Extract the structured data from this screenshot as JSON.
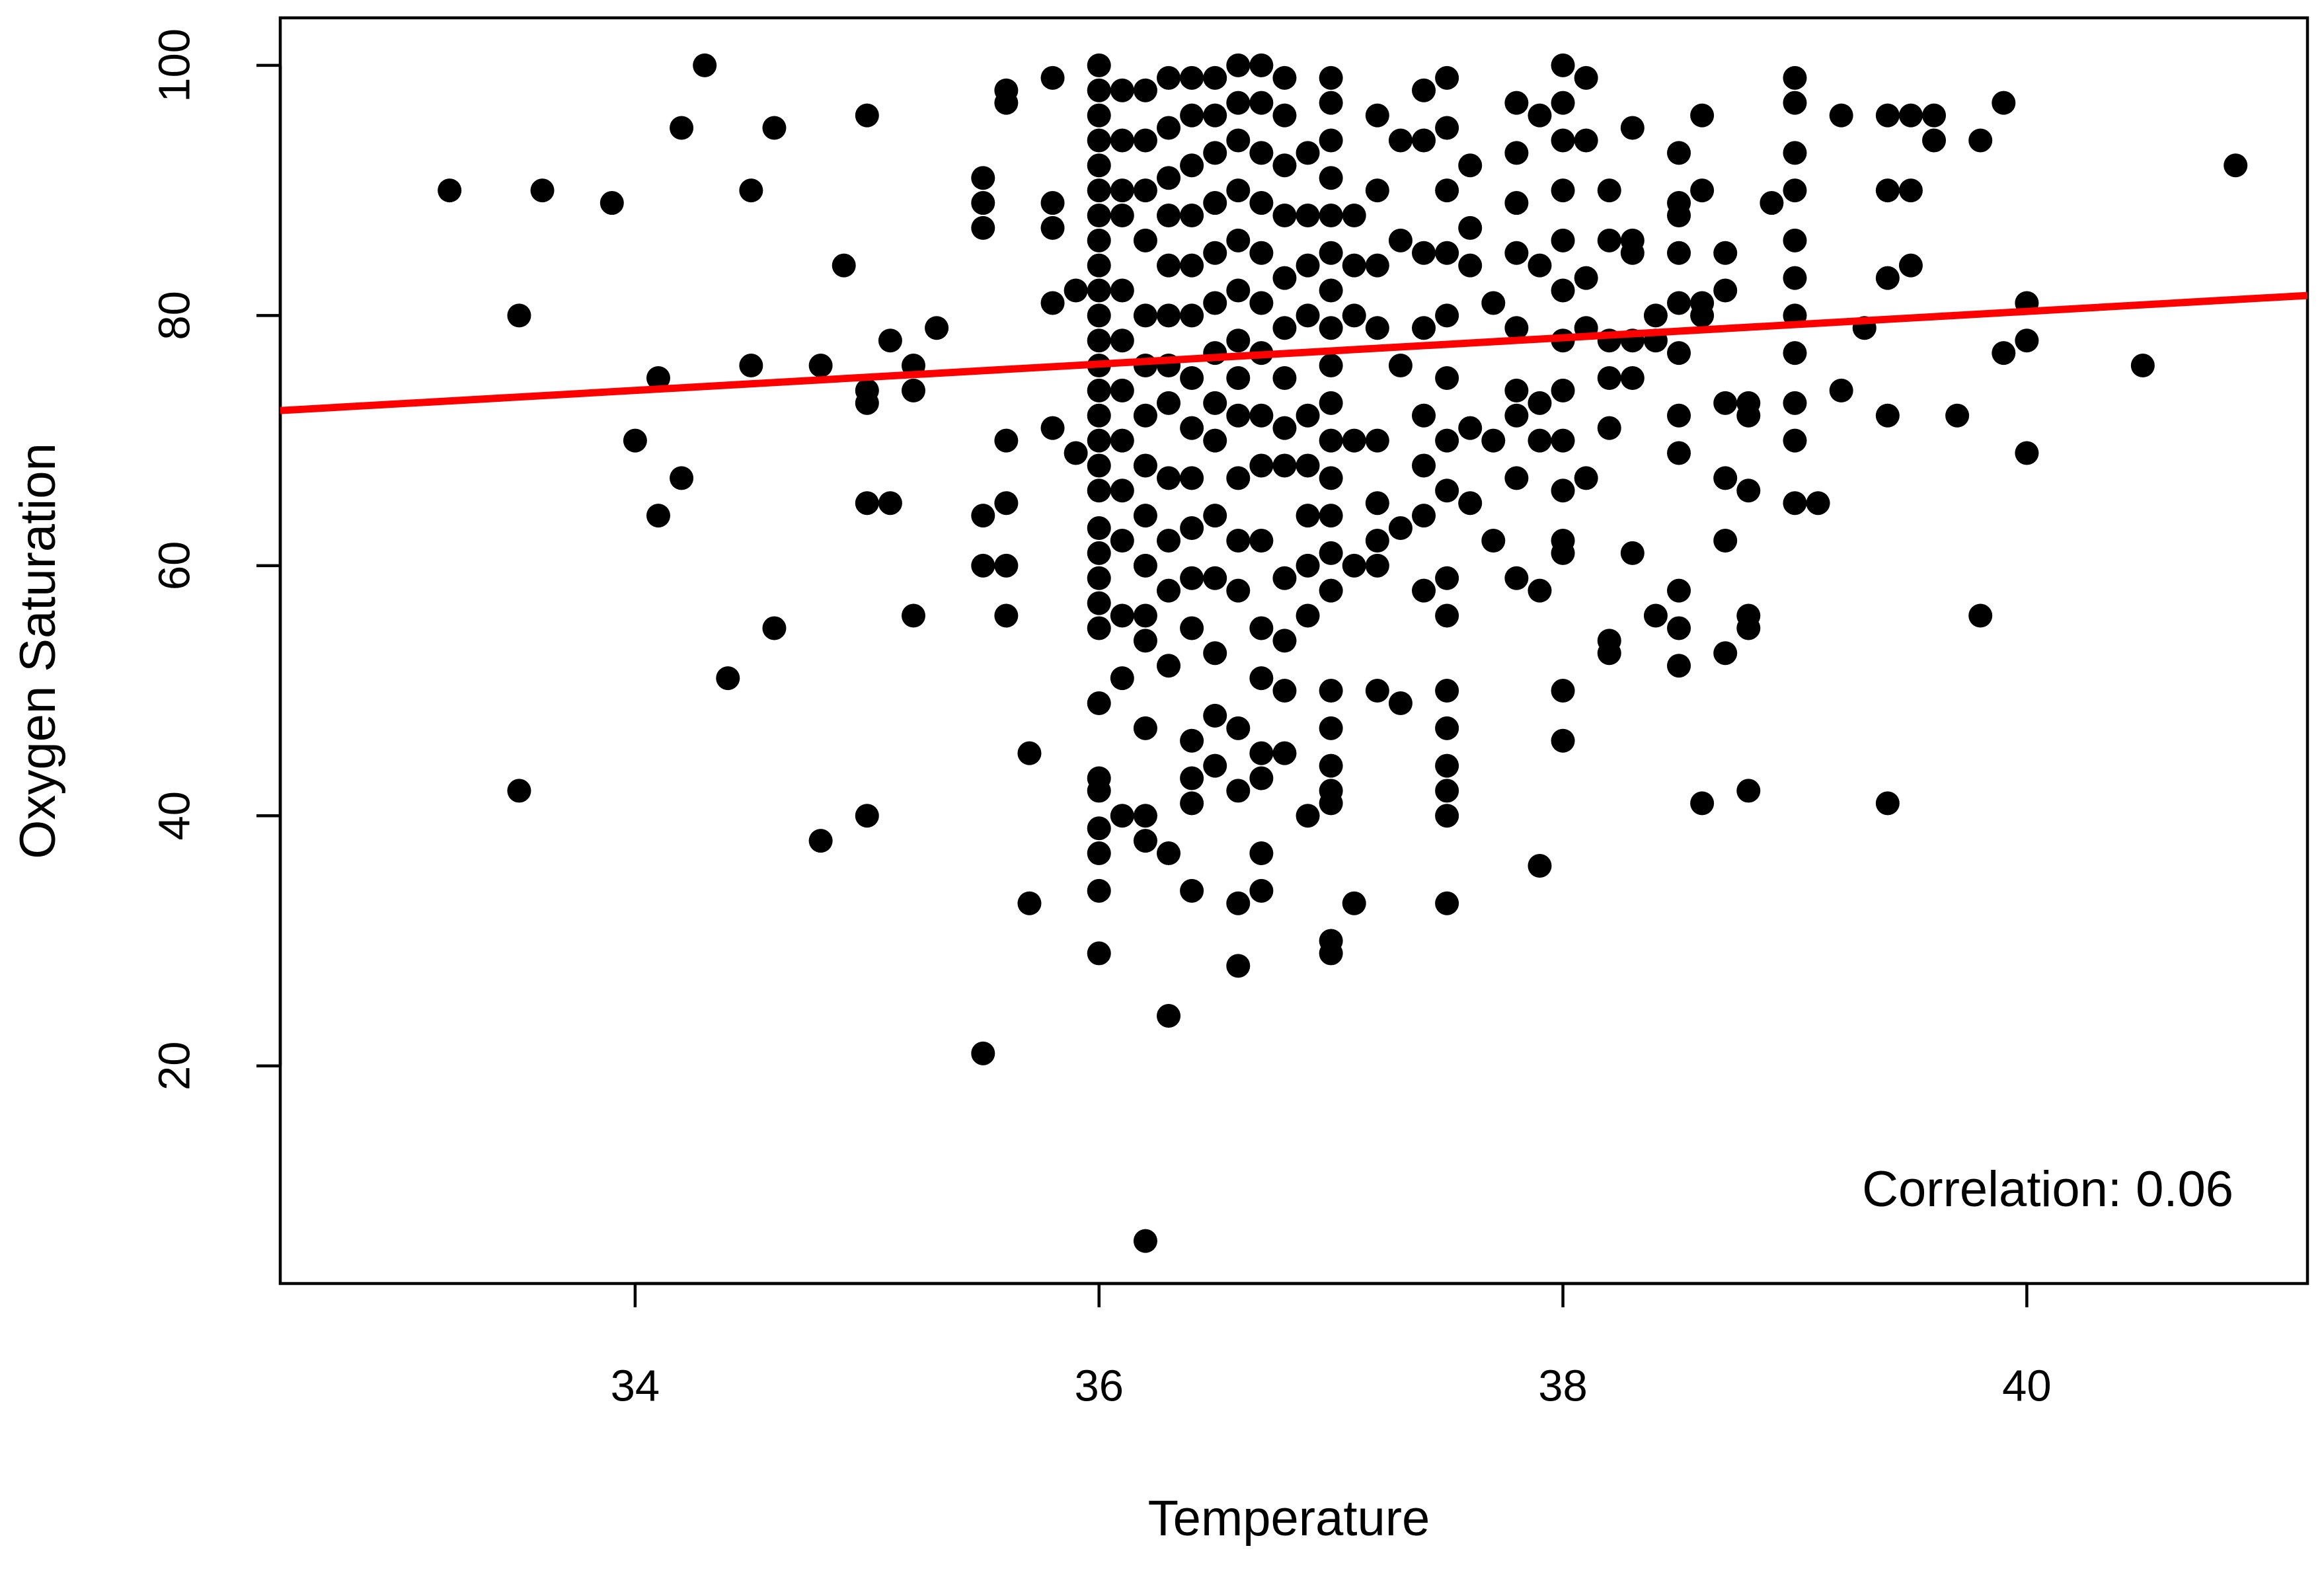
{
  "chart_data": {
    "type": "scatter",
    "xlabel": "Temperature",
    "ylabel": "Oxygen Saturation",
    "annotation": "Correlation: 0.06",
    "color": "#000000",
    "xlim": [
      32.47,
      41.21
    ],
    "ylim": [
      2.6,
      103.8
    ],
    "xticks": [
      34,
      36,
      38,
      40
    ],
    "yticks": [
      20,
      40,
      60,
      80,
      100
    ],
    "grid": false,
    "fit": {
      "x": [
        32.47,
        41.21
      ],
      "y": [
        72.4,
        81.6
      ],
      "color": "#ff0000"
    },
    "x": [
      33.2,
      33.5,
      33.5,
      33.6,
      33.9,
      34.0,
      34.1,
      34.1,
      34.2,
      34.2,
      34.3,
      34.4,
      34.5,
      34.5,
      34.6,
      34.6,
      34.8,
      34.8,
      34.9,
      35.0,
      35.0,
      35.0,
      35.0,
      35.0,
      35.1,
      35.1,
      35.2,
      35.2,
      35.2,
      35.3,
      35.5,
      35.5,
      35.5,
      35.5,
      35.5,
      35.5,
      35.6,
      35.6,
      35.6,
      35.6,
      35.6,
      35.6,
      35.7,
      35.7,
      35.8,
      35.8,
      35.8,
      35.8,
      35.8,
      35.9,
      35.9,
      36.0,
      36.0,
      36.0,
      36.0,
      36.0,
      36.0,
      36.0,
      36.0,
      36.0,
      36.0,
      36.0,
      36.0,
      36.0,
      36.0,
      36.0,
      36.0,
      36.0,
      36.0,
      36.0,
      36.0,
      36.0,
      36.0,
      36.0,
      36.0,
      36.0,
      36.0,
      36.0,
      36.0,
      36.0,
      36.0,
      36.1,
      36.1,
      36.1,
      36.1,
      36.1,
      36.1,
      36.1,
      36.1,
      36.1,
      36.1,
      36.1,
      36.1,
      36.1,
      36.2,
      36.2,
      36.2,
      36.2,
      36.2,
      36.2,
      36.2,
      36.2,
      36.2,
      36.2,
      36.2,
      36.2,
      36.2,
      36.2,
      36.2,
      36.2,
      36.3,
      36.3,
      36.3,
      36.3,
      36.3,
      36.3,
      36.3,
      36.3,
      36.3,
      36.3,
      36.3,
      36.3,
      36.3,
      36.3,
      36.4,
      36.4,
      36.4,
      36.4,
      36.4,
      36.4,
      36.4,
      36.4,
      36.4,
      36.4,
      36.4,
      36.4,
      36.4,
      36.4,
      36.4,
      36.4,
      36.5,
      36.5,
      36.5,
      36.5,
      36.5,
      36.5,
      36.5,
      36.5,
      36.5,
      36.5,
      36.5,
      36.5,
      36.5,
      36.5,
      36.6,
      36.6,
      36.6,
      36.6,
      36.6,
      36.6,
      36.6,
      36.6,
      36.6,
      36.6,
      36.6,
      36.6,
      36.6,
      36.6,
      36.6,
      36.6,
      36.7,
      36.7,
      36.7,
      36.7,
      36.7,
      36.7,
      36.7,
      36.7,
      36.7,
      36.7,
      36.7,
      36.7,
      36.7,
      36.7,
      36.7,
      36.7,
      36.8,
      36.8,
      36.8,
      36.8,
      36.8,
      36.8,
      36.8,
      36.8,
      36.8,
      36.8,
      36.8,
      36.8,
      36.8,
      36.9,
      36.9,
      36.9,
      36.9,
      36.9,
      36.9,
      36.9,
      36.9,
      36.9,
      36.9,
      37.0,
      37.0,
      37.0,
      37.0,
      37.0,
      37.0,
      37.0,
      37.0,
      37.0,
      37.0,
      37.0,
      37.0,
      37.0,
      37.0,
      37.0,
      37.0,
      37.0,
      37.0,
      37.0,
      37.0,
      37.0,
      37.0,
      37.1,
      37.1,
      37.1,
      37.1,
      37.1,
      37.1,
      37.2,
      37.2,
      37.2,
      37.2,
      37.2,
      37.2,
      37.2,
      37.2,
      37.2,
      37.3,
      37.3,
      37.3,
      37.3,
      37.3,
      37.4,
      37.4,
      37.4,
      37.4,
      37.4,
      37.4,
      37.4,
      37.4,
      37.5,
      37.5,
      37.5,
      37.5,
      37.5,
      37.5,
      37.5,
      37.5,
      37.5,
      37.5,
      37.5,
      37.5,
      37.5,
      37.5,
      37.5,
      37.5,
      37.6,
      37.6,
      37.6,
      37.6,
      37.6,
      37.7,
      37.7,
      37.7,
      37.8,
      37.8,
      37.8,
      37.8,
      37.8,
      37.8,
      37.8,
      37.8,
      37.8,
      37.9,
      37.9,
      37.9,
      37.9,
      37.9,
      37.9,
      38.0,
      38.0,
      38.0,
      38.0,
      38.0,
      38.0,
      38.0,
      38.0,
      38.0,
      38.0,
      38.0,
      38.0,
      38.0,
      38.0,
      38.1,
      38.1,
      38.1,
      38.1,
      38.1,
      38.2,
      38.2,
      38.2,
      38.2,
      38.2,
      38.2,
      38.2,
      38.3,
      38.3,
      38.3,
      38.3,
      38.3,
      38.3,
      38.4,
      38.4,
      38.4,
      38.5,
      38.5,
      38.5,
      38.5,
      38.5,
      38.5,
      38.5,
      38.5,
      38.5,
      38.5,
      38.5,
      38.6,
      38.6,
      38.6,
      38.6,
      38.6,
      38.7,
      38.7,
      38.7,
      38.7,
      38.7,
      38.7,
      38.8,
      38.8,
      38.8,
      38.8,
      38.8,
      38.8,
      38.9,
      39.0,
      39.0,
      39.0,
      39.0,
      39.0,
      39.0,
      39.0,
      39.0,
      39.0,
      39.0,
      39.0,
      39.1,
      39.2,
      39.2,
      39.3,
      39.4,
      39.4,
      39.4,
      39.4,
      39.4,
      39.5,
      39.5,
      39.5,
      39.6,
      39.6,
      39.7,
      39.8,
      39.8,
      39.9,
      39.9,
      40.0,
      40.0,
      40.0,
      40.5,
      40.9
    ],
    "values": [
      90,
      80,
      42,
      90,
      89,
      70,
      75,
      64,
      95,
      67,
      100,
      51,
      90,
      76,
      95,
      55,
      76,
      38,
      84,
      96,
      74,
      73,
      65,
      40,
      78,
      65,
      76,
      74,
      56,
      79,
      91,
      89,
      87,
      64,
      60,
      21,
      98,
      97,
      70,
      65,
      60,
      56,
      45,
      33,
      99,
      89,
      87,
      81,
      71,
      82,
      69,
      100,
      98,
      96,
      94,
      92,
      90,
      88,
      86,
      84,
      82,
      80,
      78,
      76,
      74,
      72,
      70,
      68,
      66,
      63,
      61,
      59,
      57,
      55,
      49,
      43,
      42,
      39,
      37,
      34,
      29,
      98,
      94,
      90,
      88,
      82,
      78,
      74,
      70,
      66,
      62,
      56,
      51,
      40,
      98,
      94,
      90,
      86,
      80,
      76,
      72,
      68,
      64,
      60,
      56,
      54,
      47,
      40,
      38,
      6,
      99,
      95,
      91,
      88,
      84,
      80,
      76,
      73,
      67,
      62,
      58,
      52,
      37,
      24,
      99,
      96,
      92,
      88,
      84,
      80,
      75,
      71,
      67,
      63,
      59,
      55,
      46,
      43,
      41,
      34,
      99,
      96,
      93,
      89,
      85,
      81,
      77,
      73,
      70,
      64,
      59,
      53,
      48,
      44,
      100,
      97,
      94,
      90,
      86,
      82,
      78,
      75,
      72,
      67,
      62,
      58,
      47,
      42,
      33,
      28,
      100,
      97,
      93,
      89,
      85,
      81,
      77,
      72,
      68,
      62,
      55,
      51,
      45,
      43,
      37,
      34,
      99,
      96,
      92,
      88,
      83,
      79,
      75,
      71,
      68,
      59,
      54,
      50,
      45,
      93,
      88,
      84,
      80,
      72,
      68,
      64,
      60,
      56,
      40,
      99,
      97,
      94,
      91,
      88,
      85,
      82,
      79,
      76,
      73,
      70,
      67,
      64,
      61,
      58,
      50,
      47,
      44,
      42,
      41,
      30,
      29,
      88,
      84,
      80,
      70,
      60,
      33,
      96,
      90,
      84,
      79,
      70,
      65,
      62,
      60,
      50,
      94,
      86,
      76,
      63,
      49,
      98,
      94,
      85,
      79,
      72,
      68,
      64,
      58,
      99,
      95,
      90,
      85,
      80,
      75,
      70,
      66,
      59,
      56,
      50,
      47,
      44,
      42,
      40,
      33,
      92,
      87,
      84,
      71,
      65,
      81,
      70,
      62,
      97,
      93,
      89,
      85,
      79,
      74,
      72,
      67,
      59,
      96,
      84,
      73,
      70,
      58,
      36,
      100,
      97,
      94,
      90,
      86,
      82,
      78,
      74,
      70,
      66,
      62,
      61,
      50,
      46,
      99,
      94,
      83,
      79,
      67,
      90,
      86,
      78,
      75,
      71,
      54,
      53,
      95,
      86,
      85,
      78,
      75,
      61,
      80,
      78,
      56,
      93,
      89,
      88,
      85,
      81,
      77,
      72,
      69,
      58,
      55,
      52,
      96,
      90,
      81,
      80,
      41,
      85,
      82,
      73,
      67,
      62,
      53,
      73,
      72,
      66,
      56,
      55,
      42,
      89,
      99,
      97,
      93,
      90,
      86,
      83,
      80,
      77,
      73,
      70,
      65,
      65,
      96,
      74,
      79,
      96,
      90,
      83,
      72,
      41,
      96,
      90,
      84,
      96,
      94,
      72,
      94,
      56,
      97,
      77,
      81,
      78,
      69,
      76,
      92
    ]
  }
}
